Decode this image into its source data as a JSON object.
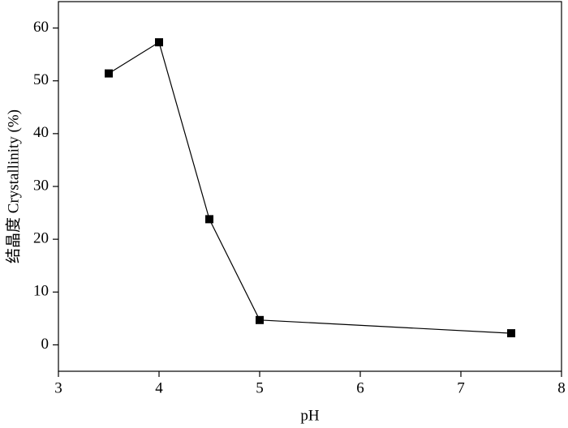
{
  "chart_data": {
    "type": "line",
    "x_label": "pH",
    "y_label": "结晶度 Crystallinity (%)",
    "x": [
      3.5,
      4,
      4.5,
      5,
      7.5
    ],
    "values": [
      51.4,
      57.3,
      23.8,
      4.7,
      2.2
    ],
    "color": "#000000",
    "marker": "square",
    "xlim": [
      3,
      8
    ],
    "xticks": [
      3,
      4,
      5,
      6,
      7,
      8
    ],
    "ylim": [
      -5,
      65
    ],
    "yticks": [
      0,
      10,
      20,
      30,
      40,
      50,
      60
    ]
  }
}
